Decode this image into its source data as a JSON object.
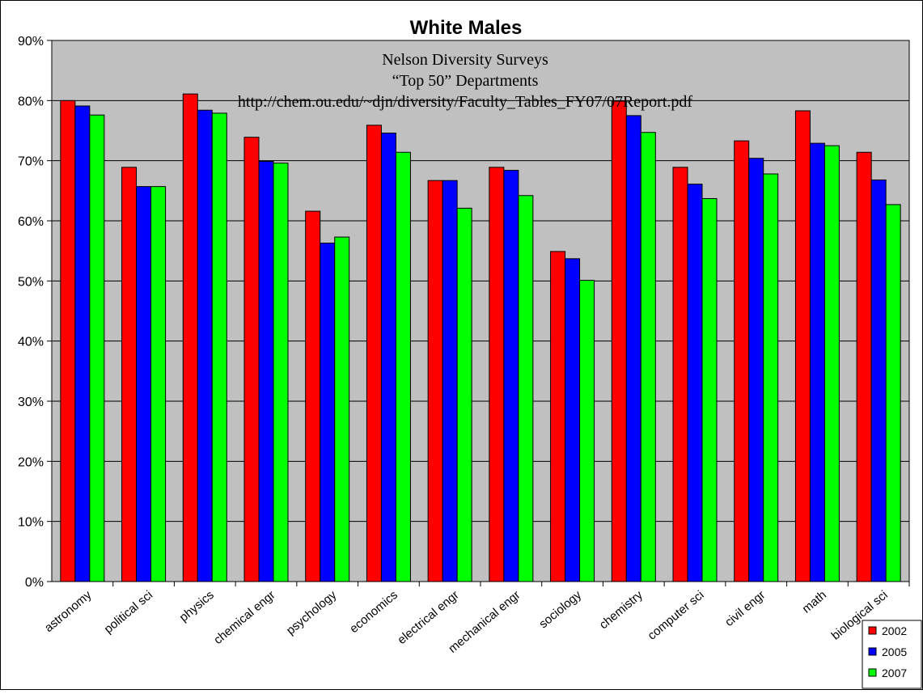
{
  "chart_data": {
    "type": "bar",
    "title": "White Males",
    "annotations": [
      "Nelson Diversity Surveys",
      "“Top 50” Departments",
      "http://chem.ou.edu/~djn/diversity/Faculty_Tables_FY07/07Report.pdf"
    ],
    "categories": [
      "astronomy",
      "political sci",
      "physics",
      "chemical engr",
      "psychology",
      "economics",
      "electrical engr",
      "mechanical engr",
      "sociology",
      "chemistry",
      "computer sci",
      "civil engr",
      "math",
      "biological sci"
    ],
    "series": [
      {
        "name": "2002",
        "color": "#ff0000",
        "values": [
          80.0,
          68.9,
          81.1,
          73.9,
          61.6,
          75.9,
          66.7,
          68.9,
          54.9,
          79.9,
          68.9,
          73.3,
          78.3,
          71.4
        ]
      },
      {
        "name": "2005",
        "color": "#0000ff",
        "values": [
          79.1,
          65.7,
          78.4,
          69.9,
          56.3,
          74.6,
          66.7,
          68.4,
          53.7,
          77.5,
          66.1,
          70.4,
          72.9,
          66.8
        ]
      },
      {
        "name": "2007",
        "color": "#00ff00",
        "values": [
          77.6,
          65.7,
          77.9,
          69.6,
          57.3,
          71.4,
          62.1,
          64.2,
          50.1,
          74.7,
          63.7,
          67.8,
          72.5,
          62.7
        ]
      }
    ],
    "ylim": [
      0,
      90
    ],
    "yticks": [
      "0%",
      "10%",
      "20%",
      "30%",
      "40%",
      "50%",
      "60%",
      "70%",
      "80%",
      "90%"
    ],
    "grid": true,
    "plot_background": "#c0c0c0",
    "legend_position": "bottom-right"
  }
}
